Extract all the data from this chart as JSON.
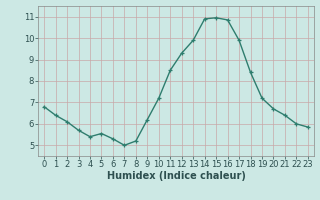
{
  "x": [
    0,
    1,
    2,
    3,
    4,
    5,
    6,
    7,
    8,
    9,
    10,
    11,
    12,
    13,
    14,
    15,
    16,
    17,
    18,
    19,
    20,
    21,
    22,
    23
  ],
  "y": [
    6.8,
    6.4,
    6.1,
    5.7,
    5.4,
    5.55,
    5.3,
    5.0,
    5.2,
    6.2,
    7.2,
    8.5,
    9.3,
    9.9,
    10.9,
    10.95,
    10.85,
    9.9,
    8.4,
    7.2,
    6.7,
    6.4,
    6.0,
    5.85
  ],
  "xlabel": "Humidex (Indice chaleur)",
  "ylim": [
    4.5,
    11.5
  ],
  "xlim": [
    -0.5,
    23.5
  ],
  "yticks": [
    5,
    6,
    7,
    8,
    9,
    10,
    11
  ],
  "xticks": [
    0,
    1,
    2,
    3,
    4,
    5,
    6,
    7,
    8,
    9,
    10,
    11,
    12,
    13,
    14,
    15,
    16,
    17,
    18,
    19,
    20,
    21,
    22,
    23
  ],
  "line_color": "#2e7d6e",
  "bg_color": "#cce8e4",
  "grid_color": "#c8a8a8",
  "label_fontsize": 7,
  "tick_fontsize": 6
}
